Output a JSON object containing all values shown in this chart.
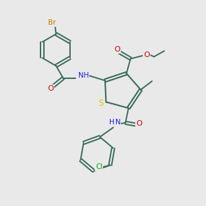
{
  "background_color": "#e9e9e9",
  "bond_color": "#3a6b5a",
  "atom_colors": {
    "Br": "#cc7700",
    "O": "#cc0000",
    "N": "#1a1aee",
    "S": "#cccc00",
    "Cl": "#00aa00",
    "C": "#3a6b5a",
    "H": "#3a6b5a"
  },
  "figsize": [
    3.0,
    3.0
  ],
  "dpi": 100
}
